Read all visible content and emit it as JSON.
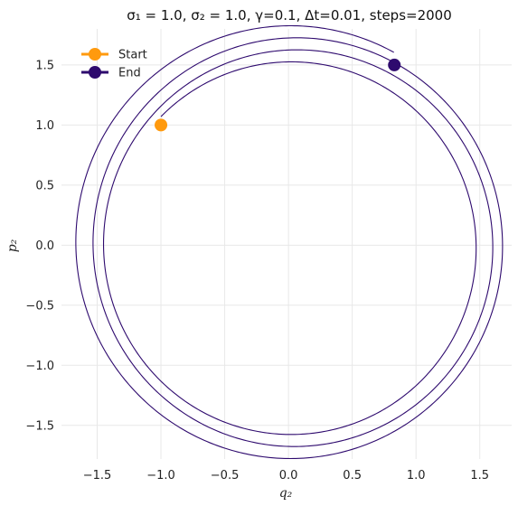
{
  "chart_data": {
    "type": "line",
    "title": "σ₁ = 1.0, σ₂ = 1.0, γ=0.1, Δt=0.01, steps=2000",
    "xlabel": "q₂",
    "ylabel": "p₂",
    "xlim": [
      -1.78,
      1.75
    ],
    "ylim": [
      -1.78,
      1.8
    ],
    "x_ticks": [
      -1.5,
      -1.0,
      -0.5,
      0.0,
      0.5,
      1.0,
      1.5
    ],
    "x_tick_labels": [
      "−1.5",
      "−1.0",
      "−0.5",
      "0.0",
      "0.5",
      "1.0",
      "1.5"
    ],
    "y_ticks": [
      -1.5,
      -1.0,
      -0.5,
      0.0,
      0.5,
      1.0,
      1.5
    ],
    "y_tick_labels": [
      "−1.5",
      "−1.0",
      "−0.5",
      "0.0",
      "0.5",
      "1.0",
      "1.5"
    ],
    "grid": true,
    "legend_position": "top-left",
    "trajectory": {
      "color": "#2e0a6e",
      "start": [
        -1.0,
        1.0
      ],
      "end": [
        0.83,
        1.5
      ],
      "steps": 2000,
      "dt": 0.01,
      "gamma": 0.1
    },
    "markers": [
      {
        "name": "Start",
        "x": -1.0,
        "y": 1.0,
        "color": "#ff9a0e"
      },
      {
        "name": "End",
        "x": 0.83,
        "y": 1.5,
        "color": "#2e0a6e"
      }
    ]
  }
}
